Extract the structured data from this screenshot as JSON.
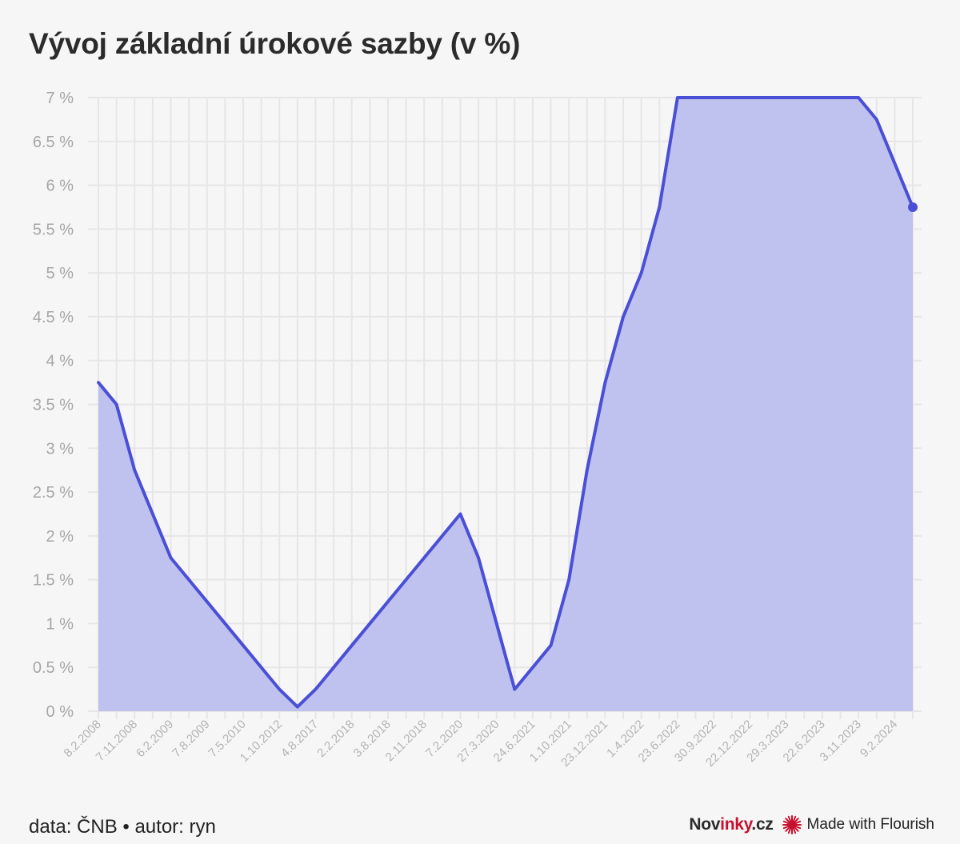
{
  "title": "Vývoj základní úrokové sazby (v %)",
  "footer": {
    "source": "data: ČNB • autor: ryn",
    "brand_prefix": "Nov",
    "brand_accent": "inky",
    "brand_suffix": ".cz",
    "flourish_label": "Made with Flourish"
  },
  "colors": {
    "line": "#4a4fd6",
    "fill": "#bfc1ee",
    "grid": "#e6e6e6",
    "brand_accent": "#c8102e",
    "flourish_icon": "#c8102e"
  },
  "chart_data": {
    "type": "area",
    "title": "Vývoj základní úrokové sazby (v %)",
    "xlabel": "",
    "ylabel": "",
    "ylim": [
      0,
      7
    ],
    "y_ticks": [
      0,
      0.5,
      1,
      1.5,
      2,
      2.5,
      3,
      3.5,
      4,
      4.5,
      5,
      5.5,
      6,
      6.5,
      7
    ],
    "y_tick_labels": [
      "0 %",
      "0.5 %",
      "1 %",
      "1.5 %",
      "2 %",
      "2.5 %",
      "3 %",
      "3.5 %",
      "4 %",
      "4.5 %",
      "5 %",
      "5.5 %",
      "6 %",
      "6.5 %",
      "7 %"
    ],
    "grid": true,
    "categories": [
      "8.2.2008",
      "",
      "7.11.2008",
      "",
      "6.2.2009",
      "",
      "7.8.2009",
      "",
      "7.5.2010",
      "",
      "1.10.2012",
      "",
      "4.8.2017",
      "",
      "2.2.2018",
      "",
      "3.8.2018",
      "",
      "2.11.2018",
      "",
      "7.2.2020",
      "",
      "27.3.2020",
      "",
      "24.6.2021",
      "",
      "1.10.2021",
      "",
      "23.12.2021",
      "",
      "1.4.2022",
      "",
      "23.6.2022",
      "",
      "30.9.2022",
      "",
      "22.12.2022",
      "",
      "29.3.2023",
      "",
      "22.6.2023",
      "",
      "3.11.2023",
      "",
      "9.2.2024",
      ""
    ],
    "series": [
      {
        "values": [
          3.75,
          3.5,
          2.75,
          2.25,
          1.75,
          1.5,
          1.25,
          1.0,
          0.75,
          0.5,
          0.25,
          0.05,
          0.25,
          0.5,
          0.75,
          1.0,
          1.25,
          1.5,
          1.75,
          2.0,
          2.25,
          1.75,
          1.0,
          0.25,
          0.5,
          0.75,
          1.5,
          2.75,
          3.75,
          4.5,
          5.0,
          5.75,
          7.0,
          7.0,
          7.0,
          7.0,
          7.0,
          7.0,
          7.0,
          7.0,
          7.0,
          7.0,
          7.0,
          6.75,
          6.25,
          5.75
        ]
      }
    ]
  }
}
